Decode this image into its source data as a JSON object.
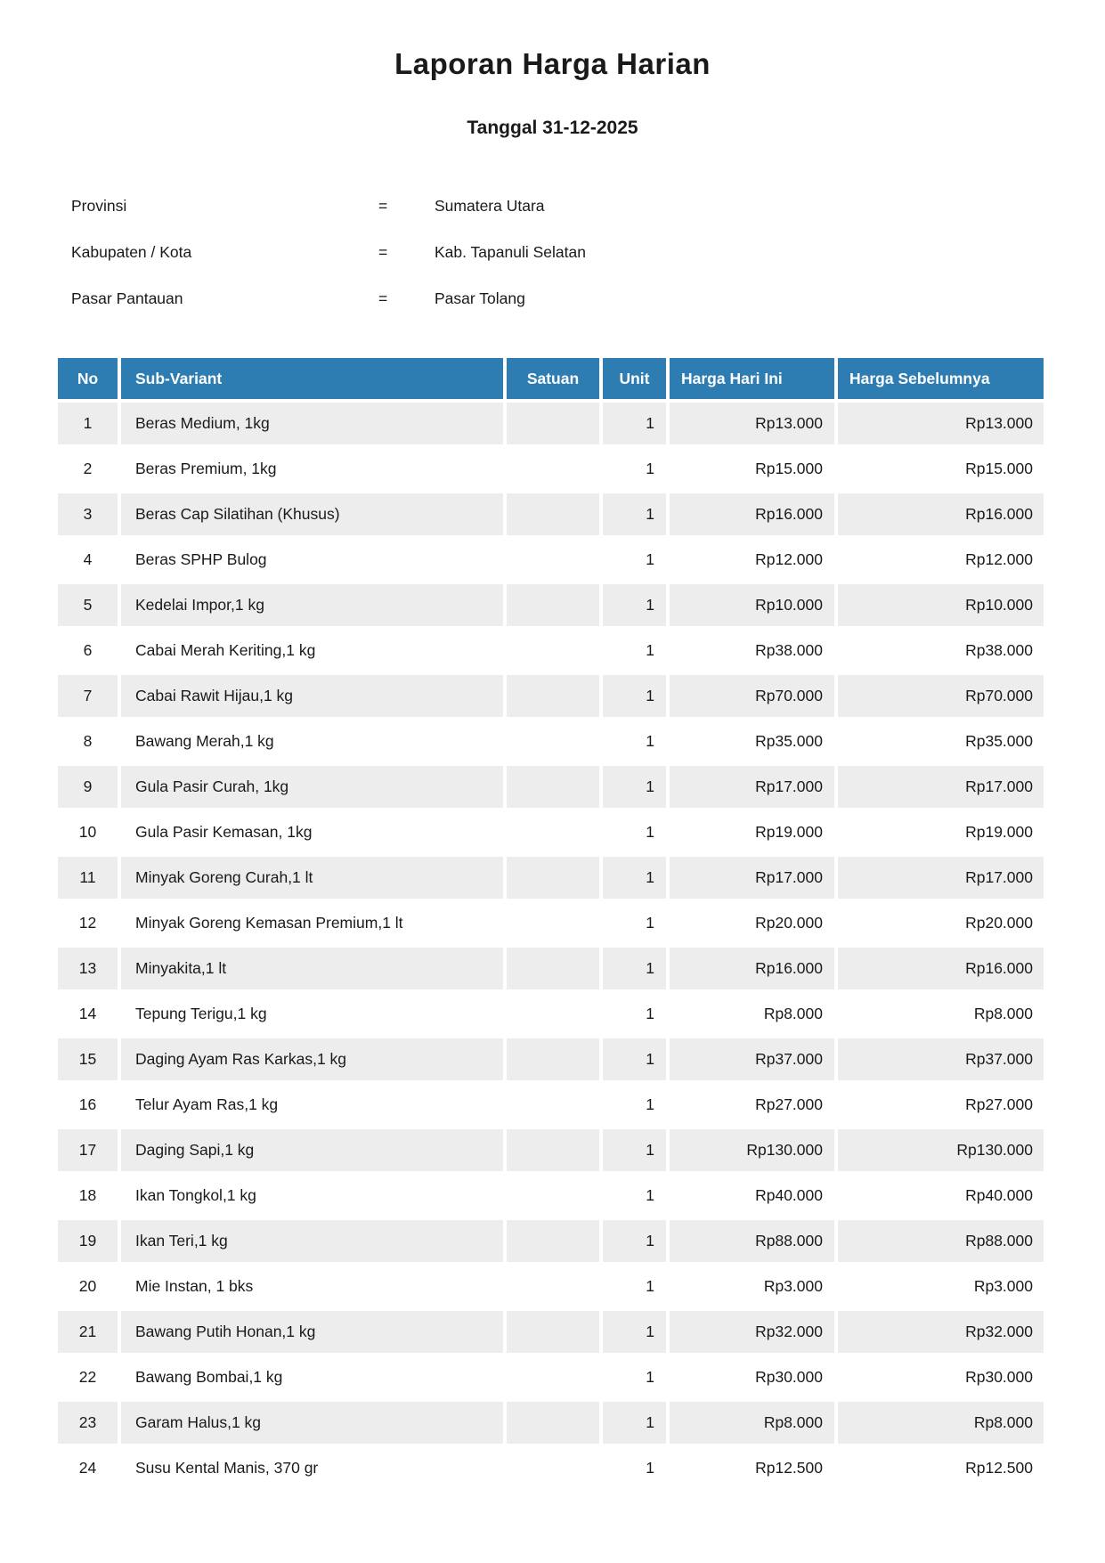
{
  "page": {
    "title": "Laporan Harga Harian",
    "subtitle": "Tanggal 31-12-2025"
  },
  "info": {
    "rows": [
      {
        "label": "Provinsi",
        "separator": "=",
        "value": "Sumatera Utara"
      },
      {
        "label": "Kabupaten / Kota",
        "separator": "=",
        "value": "Kab. Tapanuli Selatan"
      },
      {
        "label": "Pasar Pantauan",
        "separator": "=",
        "value": "Pasar Tolang"
      }
    ]
  },
  "table": {
    "columns": [
      "No",
      "Sub-Variant",
      "Satuan",
      "Unit",
      "Harga Hari Ini",
      "Harga Sebelumnya"
    ],
    "rows": [
      {
        "no": "1",
        "sub_variant": "Beras Medium, 1kg",
        "satuan": "",
        "unit": "1",
        "harga_hari_ini": "Rp13.000",
        "harga_sebelumnya": "Rp13.000"
      },
      {
        "no": "2",
        "sub_variant": "Beras Premium, 1kg",
        "satuan": "",
        "unit": "1",
        "harga_hari_ini": "Rp15.000",
        "harga_sebelumnya": "Rp15.000"
      },
      {
        "no": "3",
        "sub_variant": "Beras Cap Silatihan (Khusus)",
        "satuan": "",
        "unit": "1",
        "harga_hari_ini": "Rp16.000",
        "harga_sebelumnya": "Rp16.000"
      },
      {
        "no": "4",
        "sub_variant": "Beras SPHP Bulog",
        "satuan": "",
        "unit": "1",
        "harga_hari_ini": "Rp12.000",
        "harga_sebelumnya": "Rp12.000"
      },
      {
        "no": "5",
        "sub_variant": "Kedelai Impor,1 kg",
        "satuan": "",
        "unit": "1",
        "harga_hari_ini": "Rp10.000",
        "harga_sebelumnya": "Rp10.000"
      },
      {
        "no": "6",
        "sub_variant": "Cabai Merah Keriting,1 kg",
        "satuan": "",
        "unit": "1",
        "harga_hari_ini": "Rp38.000",
        "harga_sebelumnya": "Rp38.000"
      },
      {
        "no": "7",
        "sub_variant": "Cabai Rawit Hijau,1 kg",
        "satuan": "",
        "unit": "1",
        "harga_hari_ini": "Rp70.000",
        "harga_sebelumnya": "Rp70.000"
      },
      {
        "no": "8",
        "sub_variant": "Bawang Merah,1 kg",
        "satuan": "",
        "unit": "1",
        "harga_hari_ini": "Rp35.000",
        "harga_sebelumnya": "Rp35.000"
      },
      {
        "no": "9",
        "sub_variant": "Gula Pasir Curah, 1kg",
        "satuan": "",
        "unit": "1",
        "harga_hari_ini": "Rp17.000",
        "harga_sebelumnya": "Rp17.000"
      },
      {
        "no": "10",
        "sub_variant": "Gula Pasir Kemasan, 1kg",
        "satuan": "",
        "unit": "1",
        "harga_hari_ini": "Rp19.000",
        "harga_sebelumnya": "Rp19.000"
      },
      {
        "no": "11",
        "sub_variant": "Minyak Goreng Curah,1 lt",
        "satuan": "",
        "unit": "1",
        "harga_hari_ini": "Rp17.000",
        "harga_sebelumnya": "Rp17.000"
      },
      {
        "no": "12",
        "sub_variant": "Minyak Goreng Kemasan Premium,1 lt",
        "satuan": "",
        "unit": "1",
        "harga_hari_ini": "Rp20.000",
        "harga_sebelumnya": "Rp20.000"
      },
      {
        "no": "13",
        "sub_variant": "Minyakita,1 lt",
        "satuan": "",
        "unit": "1",
        "harga_hari_ini": "Rp16.000",
        "harga_sebelumnya": "Rp16.000"
      },
      {
        "no": "14",
        "sub_variant": "Tepung Terigu,1 kg",
        "satuan": "",
        "unit": "1",
        "harga_hari_ini": "Rp8.000",
        "harga_sebelumnya": "Rp8.000"
      },
      {
        "no": "15",
        "sub_variant": "Daging Ayam Ras Karkas,1 kg",
        "satuan": "",
        "unit": "1",
        "harga_hari_ini": "Rp37.000",
        "harga_sebelumnya": "Rp37.000"
      },
      {
        "no": "16",
        "sub_variant": "Telur Ayam Ras,1 kg",
        "satuan": "",
        "unit": "1",
        "harga_hari_ini": "Rp27.000",
        "harga_sebelumnya": "Rp27.000"
      },
      {
        "no": "17",
        "sub_variant": "Daging Sapi,1 kg",
        "satuan": "",
        "unit": "1",
        "harga_hari_ini": "Rp130.000",
        "harga_sebelumnya": "Rp130.000"
      },
      {
        "no": "18",
        "sub_variant": "Ikan Tongkol,1 kg",
        "satuan": "",
        "unit": "1",
        "harga_hari_ini": "Rp40.000",
        "harga_sebelumnya": "Rp40.000"
      },
      {
        "no": "19",
        "sub_variant": "Ikan Teri,1 kg",
        "satuan": "",
        "unit": "1",
        "harga_hari_ini": "Rp88.000",
        "harga_sebelumnya": "Rp88.000"
      },
      {
        "no": "20",
        "sub_variant": "Mie Instan, 1 bks",
        "satuan": "",
        "unit": "1",
        "harga_hari_ini": "Rp3.000",
        "harga_sebelumnya": "Rp3.000"
      },
      {
        "no": "21",
        "sub_variant": "Bawang Putih Honan,1 kg",
        "satuan": "",
        "unit": "1",
        "harga_hari_ini": "Rp32.000",
        "harga_sebelumnya": "Rp32.000"
      },
      {
        "no": "22",
        "sub_variant": "Bawang Bombai,1 kg",
        "satuan": "",
        "unit": "1",
        "harga_hari_ini": "Rp30.000",
        "harga_sebelumnya": "Rp30.000"
      },
      {
        "no": "23",
        "sub_variant": "Garam Halus,1 kg",
        "satuan": "",
        "unit": "1",
        "harga_hari_ini": "Rp8.000",
        "harga_sebelumnya": "Rp8.000"
      },
      {
        "no": "24",
        "sub_variant": "Susu Kental Manis, 370 gr",
        "satuan": "",
        "unit": "1",
        "harga_hari_ini": "Rp12.500",
        "harga_sebelumnya": "Rp12.500"
      }
    ]
  },
  "colors": {
    "header_bg": "#2d7db2",
    "header_text": "#ffffff",
    "row_stripe": "#ededed",
    "body_text": "#1a1a1a"
  }
}
